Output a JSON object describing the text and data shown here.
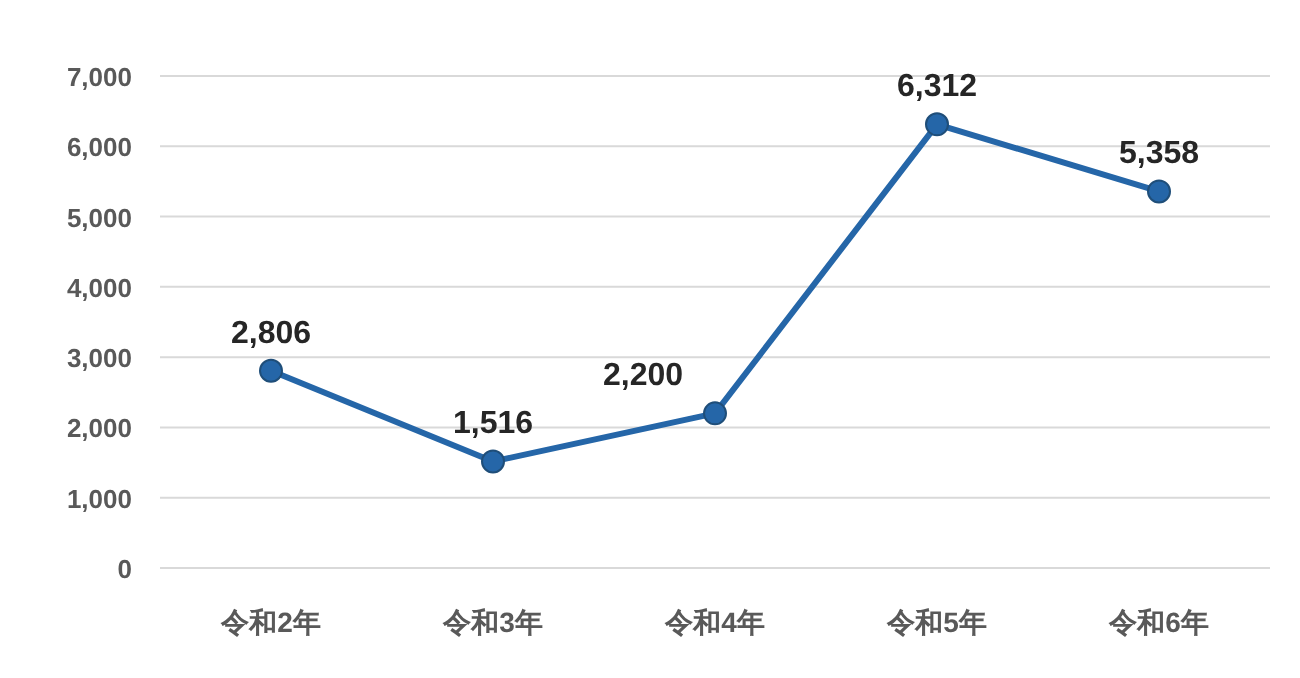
{
  "chart_data": {
    "type": "line",
    "categories": [
      "令和2年",
      "令和3年",
      "令和4年",
      "令和5年",
      "令和6年"
    ],
    "series": [
      {
        "color": "#2566a8",
        "values": [
          2806,
          1516,
          2200,
          6312,
          5358
        ]
      }
    ],
    "ylim": [
      0,
      7000
    ],
    "yticks": [
      {
        "value": 0,
        "label": "0"
      },
      {
        "value": 1000,
        "label": "1,000"
      },
      {
        "value": 2000,
        "label": "2,000"
      },
      {
        "value": 3000,
        "label": "3,000"
      },
      {
        "value": 4000,
        "label": "4,000"
      },
      {
        "value": 5000,
        "label": "5,000"
      },
      {
        "value": 6000,
        "label": "6,000"
      },
      {
        "value": 7000,
        "label": "7,000"
      }
    ],
    "value_labels": [
      "2,806",
      "1,516",
      "2,200",
      "6,312",
      "5,358"
    ],
    "grid": "y",
    "marker": "circle",
    "line_style": "solid"
  }
}
